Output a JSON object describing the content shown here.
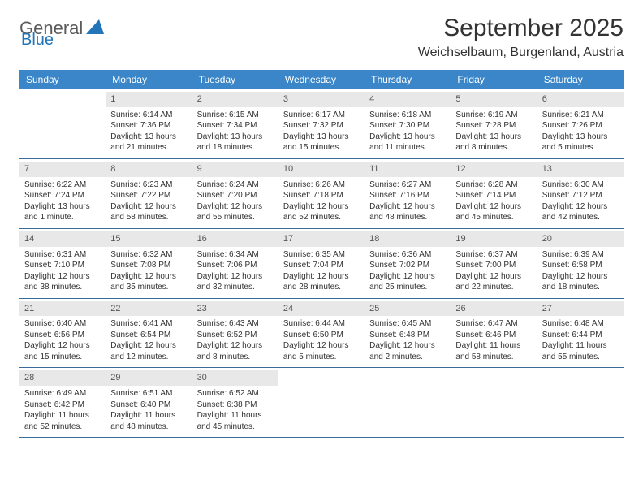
{
  "logo": {
    "text1": "General",
    "text2": "Blue"
  },
  "title": "September 2025",
  "location": "Weichselbaum, Burgenland, Austria",
  "colors": {
    "header_bg": "#3a86c8",
    "header_text": "#ffffff",
    "daynum_bg": "#e8e8e8",
    "row_border": "#3a6a9a",
    "logo_gray": "#5a5a5a",
    "logo_blue": "#2175b8",
    "text": "#333333"
  },
  "day_names": [
    "Sunday",
    "Monday",
    "Tuesday",
    "Wednesday",
    "Thursday",
    "Friday",
    "Saturday"
  ],
  "weeks": [
    [
      {
        "empty": true
      },
      {
        "num": "1",
        "sunrise": "Sunrise: 6:14 AM",
        "sunset": "Sunset: 7:36 PM",
        "daylight1": "Daylight: 13 hours",
        "daylight2": "and 21 minutes."
      },
      {
        "num": "2",
        "sunrise": "Sunrise: 6:15 AM",
        "sunset": "Sunset: 7:34 PM",
        "daylight1": "Daylight: 13 hours",
        "daylight2": "and 18 minutes."
      },
      {
        "num": "3",
        "sunrise": "Sunrise: 6:17 AM",
        "sunset": "Sunset: 7:32 PM",
        "daylight1": "Daylight: 13 hours",
        "daylight2": "and 15 minutes."
      },
      {
        "num": "4",
        "sunrise": "Sunrise: 6:18 AM",
        "sunset": "Sunset: 7:30 PM",
        "daylight1": "Daylight: 13 hours",
        "daylight2": "and 11 minutes."
      },
      {
        "num": "5",
        "sunrise": "Sunrise: 6:19 AM",
        "sunset": "Sunset: 7:28 PM",
        "daylight1": "Daylight: 13 hours",
        "daylight2": "and 8 minutes."
      },
      {
        "num": "6",
        "sunrise": "Sunrise: 6:21 AM",
        "sunset": "Sunset: 7:26 PM",
        "daylight1": "Daylight: 13 hours",
        "daylight2": "and 5 minutes."
      }
    ],
    [
      {
        "num": "7",
        "sunrise": "Sunrise: 6:22 AM",
        "sunset": "Sunset: 7:24 PM",
        "daylight1": "Daylight: 13 hours",
        "daylight2": "and 1 minute."
      },
      {
        "num": "8",
        "sunrise": "Sunrise: 6:23 AM",
        "sunset": "Sunset: 7:22 PM",
        "daylight1": "Daylight: 12 hours",
        "daylight2": "and 58 minutes."
      },
      {
        "num": "9",
        "sunrise": "Sunrise: 6:24 AM",
        "sunset": "Sunset: 7:20 PM",
        "daylight1": "Daylight: 12 hours",
        "daylight2": "and 55 minutes."
      },
      {
        "num": "10",
        "sunrise": "Sunrise: 6:26 AM",
        "sunset": "Sunset: 7:18 PM",
        "daylight1": "Daylight: 12 hours",
        "daylight2": "and 52 minutes."
      },
      {
        "num": "11",
        "sunrise": "Sunrise: 6:27 AM",
        "sunset": "Sunset: 7:16 PM",
        "daylight1": "Daylight: 12 hours",
        "daylight2": "and 48 minutes."
      },
      {
        "num": "12",
        "sunrise": "Sunrise: 6:28 AM",
        "sunset": "Sunset: 7:14 PM",
        "daylight1": "Daylight: 12 hours",
        "daylight2": "and 45 minutes."
      },
      {
        "num": "13",
        "sunrise": "Sunrise: 6:30 AM",
        "sunset": "Sunset: 7:12 PM",
        "daylight1": "Daylight: 12 hours",
        "daylight2": "and 42 minutes."
      }
    ],
    [
      {
        "num": "14",
        "sunrise": "Sunrise: 6:31 AM",
        "sunset": "Sunset: 7:10 PM",
        "daylight1": "Daylight: 12 hours",
        "daylight2": "and 38 minutes."
      },
      {
        "num": "15",
        "sunrise": "Sunrise: 6:32 AM",
        "sunset": "Sunset: 7:08 PM",
        "daylight1": "Daylight: 12 hours",
        "daylight2": "and 35 minutes."
      },
      {
        "num": "16",
        "sunrise": "Sunrise: 6:34 AM",
        "sunset": "Sunset: 7:06 PM",
        "daylight1": "Daylight: 12 hours",
        "daylight2": "and 32 minutes."
      },
      {
        "num": "17",
        "sunrise": "Sunrise: 6:35 AM",
        "sunset": "Sunset: 7:04 PM",
        "daylight1": "Daylight: 12 hours",
        "daylight2": "and 28 minutes."
      },
      {
        "num": "18",
        "sunrise": "Sunrise: 6:36 AM",
        "sunset": "Sunset: 7:02 PM",
        "daylight1": "Daylight: 12 hours",
        "daylight2": "and 25 minutes."
      },
      {
        "num": "19",
        "sunrise": "Sunrise: 6:37 AM",
        "sunset": "Sunset: 7:00 PM",
        "daylight1": "Daylight: 12 hours",
        "daylight2": "and 22 minutes."
      },
      {
        "num": "20",
        "sunrise": "Sunrise: 6:39 AM",
        "sunset": "Sunset: 6:58 PM",
        "daylight1": "Daylight: 12 hours",
        "daylight2": "and 18 minutes."
      }
    ],
    [
      {
        "num": "21",
        "sunrise": "Sunrise: 6:40 AM",
        "sunset": "Sunset: 6:56 PM",
        "daylight1": "Daylight: 12 hours",
        "daylight2": "and 15 minutes."
      },
      {
        "num": "22",
        "sunrise": "Sunrise: 6:41 AM",
        "sunset": "Sunset: 6:54 PM",
        "daylight1": "Daylight: 12 hours",
        "daylight2": "and 12 minutes."
      },
      {
        "num": "23",
        "sunrise": "Sunrise: 6:43 AM",
        "sunset": "Sunset: 6:52 PM",
        "daylight1": "Daylight: 12 hours",
        "daylight2": "and 8 minutes."
      },
      {
        "num": "24",
        "sunrise": "Sunrise: 6:44 AM",
        "sunset": "Sunset: 6:50 PM",
        "daylight1": "Daylight: 12 hours",
        "daylight2": "and 5 minutes."
      },
      {
        "num": "25",
        "sunrise": "Sunrise: 6:45 AM",
        "sunset": "Sunset: 6:48 PM",
        "daylight1": "Daylight: 12 hours",
        "daylight2": "and 2 minutes."
      },
      {
        "num": "26",
        "sunrise": "Sunrise: 6:47 AM",
        "sunset": "Sunset: 6:46 PM",
        "daylight1": "Daylight: 11 hours",
        "daylight2": "and 58 minutes."
      },
      {
        "num": "27",
        "sunrise": "Sunrise: 6:48 AM",
        "sunset": "Sunset: 6:44 PM",
        "daylight1": "Daylight: 11 hours",
        "daylight2": "and 55 minutes."
      }
    ],
    [
      {
        "num": "28",
        "sunrise": "Sunrise: 6:49 AM",
        "sunset": "Sunset: 6:42 PM",
        "daylight1": "Daylight: 11 hours",
        "daylight2": "and 52 minutes."
      },
      {
        "num": "29",
        "sunrise": "Sunrise: 6:51 AM",
        "sunset": "Sunset: 6:40 PM",
        "daylight1": "Daylight: 11 hours",
        "daylight2": "and 48 minutes."
      },
      {
        "num": "30",
        "sunrise": "Sunrise: 6:52 AM",
        "sunset": "Sunset: 6:38 PM",
        "daylight1": "Daylight: 11 hours",
        "daylight2": "and 45 minutes."
      },
      {
        "empty": true
      },
      {
        "empty": true
      },
      {
        "empty": true
      },
      {
        "empty": true
      }
    ]
  ]
}
